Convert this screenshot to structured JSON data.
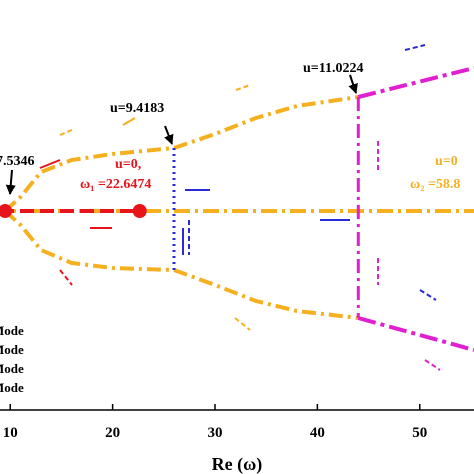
{
  "chart_data": {
    "type": "line",
    "x_label": "Re (ω)",
    "xlim": [
      9,
      55.3
    ],
    "xticks": [
      10,
      20,
      30,
      40,
      50
    ],
    "ylim": [
      -9.95,
      10.55
    ],
    "series": [
      {
        "color": "#f5b020",
        "dash": "14 5 3 5",
        "width": 4,
        "x": [
          9.5,
          11,
          13,
          16,
          20,
          26,
          30,
          34,
          38,
          44
        ],
        "values": [
          0,
          0.7,
          1.95,
          2.55,
          2.85,
          3.15,
          3.85,
          4.65,
          5.25,
          5.7
        ]
      },
      {
        "color": "#f5b020",
        "dash": "14 5 3 5",
        "width": 4,
        "x": [
          9.5,
          11,
          13,
          16,
          20,
          26,
          30,
          34,
          38,
          44
        ],
        "values": [
          0,
          -0.7,
          -1.95,
          -2.6,
          -2.85,
          -2.95,
          -3.7,
          -4.5,
          -5.0,
          -5.35
        ]
      },
      {
        "color": "#e020d0",
        "dash": "18 5 4 5",
        "width": 4,
        "x": [
          44,
          55.3
        ],
        "values": [
          5.7,
          7.15
        ]
      },
      {
        "color": "#e020d0",
        "dash": "18 5 4 5",
        "width": 4,
        "x": [
          44,
          55.3
        ],
        "values": [
          -5.35,
          -6.95
        ]
      },
      {
        "color": "#f5b020",
        "dash": "16 5 3 5",
        "width": 4,
        "x": [
          9,
          55.3
        ],
        "values": [
          0,
          0
        ]
      },
      {
        "color": "#e8141c",
        "dash": "14 6",
        "width": 4,
        "x": [
          9,
          22.6474
        ],
        "values": [
          0,
          0
        ]
      },
      {
        "color": "#2b2bd6",
        "dash": "2 4",
        "width": 3,
        "x": [
          26,
          26
        ],
        "values": [
          3.15,
          -2.95
        ]
      },
      {
        "color": "#e020d0",
        "dash": "14 5 3 5",
        "width": 3,
        "x": [
          44,
          44
        ],
        "values": [
          5.7,
          -5.35
        ]
      }
    ],
    "points": {
      "color": "#e8141c",
      "x": [
        9.5,
        22.6474
      ],
      "values": [
        0,
        0
      ]
    },
    "annotations": [
      "7.5346",
      "u=9.4183",
      "u=11.0224",
      "u=0,",
      "ω₁ =22.6474",
      "u=0",
      "ω₂ =58.8"
    ],
    "legend": [
      "Mode",
      "Mode",
      "Mode",
      "Mode"
    ]
  }
}
